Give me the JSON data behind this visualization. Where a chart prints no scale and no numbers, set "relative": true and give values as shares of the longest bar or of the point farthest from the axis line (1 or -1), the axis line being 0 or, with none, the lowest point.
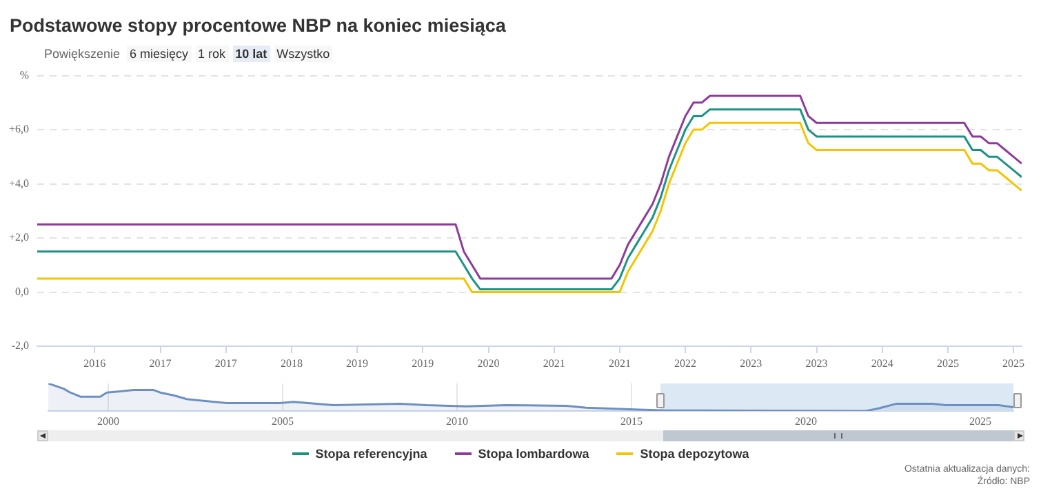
{
  "chart_data": [
    {
      "type": "line",
      "title": "Podstawowe stopy procentowe NBP na koniec miesiąca",
      "annotations": [
        "Powiększenie",
        "6 miesięcy",
        "1 rok",
        "10 lat",
        "Wszystko",
        "Ostatnia aktualizacja danych:",
        "Źródło: NBP"
      ],
      "x": [
        "2015-11",
        "2020-02",
        "2020-03",
        "2020-04",
        "2020-05",
        "2021-09",
        "2021-10",
        "2021-11",
        "2021-12",
        "2022-01",
        "2022-02",
        "2022-03",
        "2022-04",
        "2022-05",
        "2022-06",
        "2022-07",
        "2022-08",
        "2022-09",
        "2023-08",
        "2023-09",
        "2023-10",
        "2025-04",
        "2025-05",
        "2025-06",
        "2025-07",
        "2025-08",
        "2025-09",
        "2025-10",
        "2025-11"
      ],
      "series": [
        {
          "name": "Stopa referencyjna",
          "color": "#1a9386",
          "values": [
            1.5,
            1.5,
            1.0,
            0.5,
            0.1,
            0.1,
            0.5,
            1.25,
            1.75,
            2.25,
            2.75,
            3.5,
            4.5,
            5.25,
            6.0,
            6.5,
            6.5,
            6.75,
            6.75,
            6.0,
            5.75,
            5.75,
            5.25,
            5.25,
            5.0,
            5.0,
            4.75,
            4.5,
            4.25
          ]
        },
        {
          "name": "Stopa lombardowa",
          "color": "#8e3a9d",
          "values": [
            2.5,
            2.5,
            1.5,
            1.0,
            0.5,
            0.5,
            1.0,
            1.75,
            2.25,
            2.75,
            3.25,
            4.0,
            5.0,
            5.75,
            6.5,
            7.0,
            7.0,
            7.25,
            7.25,
            6.5,
            6.25,
            6.25,
            5.75,
            5.75,
            5.5,
            5.5,
            5.25,
            5.0,
            4.75
          ]
        },
        {
          "name": "Stopa depozytowa",
          "color": "#f5c400",
          "values": [
            0.5,
            0.5,
            0.5,
            0.0,
            0.0,
            0.0,
            0.0,
            0.75,
            1.25,
            1.75,
            2.25,
            3.0,
            4.0,
            4.75,
            5.5,
            6.0,
            6.0,
            6.25,
            6.25,
            5.5,
            5.25,
            5.25,
            4.75,
            4.75,
            4.5,
            4.5,
            4.25,
            4.0,
            3.75
          ]
        }
      ],
      "xlim": [
        "2015-11",
        "2025-11"
      ],
      "xticks": [
        {
          "value": "2016-06",
          "label": "2016"
        },
        {
          "value": "2017-02",
          "label": "2017"
        },
        {
          "value": "2017-10",
          "label": "2017"
        },
        {
          "value": "2018-06",
          "label": "2018"
        },
        {
          "value": "2019-02",
          "label": "2019"
        },
        {
          "value": "2019-10",
          "label": "2019"
        },
        {
          "value": "2020-06",
          "label": "2020"
        },
        {
          "value": "2021-02",
          "label": "2021"
        },
        {
          "value": "2021-10",
          "label": "2021"
        },
        {
          "value": "2022-06",
          "label": "2022"
        },
        {
          "value": "2023-02",
          "label": "2023"
        },
        {
          "value": "2023-10",
          "label": "2023"
        },
        {
          "value": "2024-06",
          "label": "2024"
        },
        {
          "value": "2025-02",
          "label": "2025"
        },
        {
          "value": "2025-10",
          "label": "2025"
        }
      ],
      "ylim": [
        -2,
        8
      ],
      "yticks": [
        {
          "value": -2,
          "label": "-2,0"
        },
        {
          "value": 0,
          "label": "0,0"
        },
        {
          "value": 2,
          "label": "+2,0"
        },
        {
          "value": 4,
          "label": "+4,0"
        },
        {
          "value": 6,
          "label": "+6,0"
        },
        {
          "value": 8,
          "label": "%"
        }
      ],
      "grid": "y",
      "legend": "bottom",
      "marker": "none",
      "line_style": "solid"
    },
    {
      "type": "area",
      "relative": true,
      "x": [
        1998.28,
        1998.72,
        1998.91,
        1999.2,
        1999.77,
        1999.96,
        2000.34,
        2000.73,
        2001.3,
        2001.49,
        2001.87,
        2002.25,
        2002.63,
        2003.4,
        2004.92,
        2005.31,
        2006.45,
        2008.36,
        2009.12,
        2010.27,
        2011.41,
        2013.13,
        2013.7,
        2015.23,
        2015.99,
        2021.72,
        2022.1,
        2022.58,
        2023.63,
        2024.01,
        2025.53,
        2025.95
      ],
      "series": [
        {
          "color": "#6d8fc1",
          "values": [
            1.0,
            0.81,
            0.67,
            0.52,
            0.52,
            0.67,
            0.71,
            0.76,
            0.76,
            0.67,
            0.57,
            0.43,
            0.38,
            0.29,
            0.29,
            0.33,
            0.21,
            0.26,
            0.21,
            0.17,
            0.21,
            0.19,
            0.12,
            0.05,
            0.02,
            0,
            0.1,
            0.26,
            0.26,
            0.21,
            0.21,
            0.14
          ]
        }
      ],
      "xlim": [
        1998.28,
        2025.95
      ],
      "xticks": [
        2000,
        2005,
        2010,
        2015,
        2020,
        2025
      ],
      "bands": [
        {
          "axis": "x",
          "from": 2015.83,
          "to": 2025.95,
          "color": "#dce9f4"
        }
      ],
      "grid": "x",
      "marker": "none"
    }
  ]
}
